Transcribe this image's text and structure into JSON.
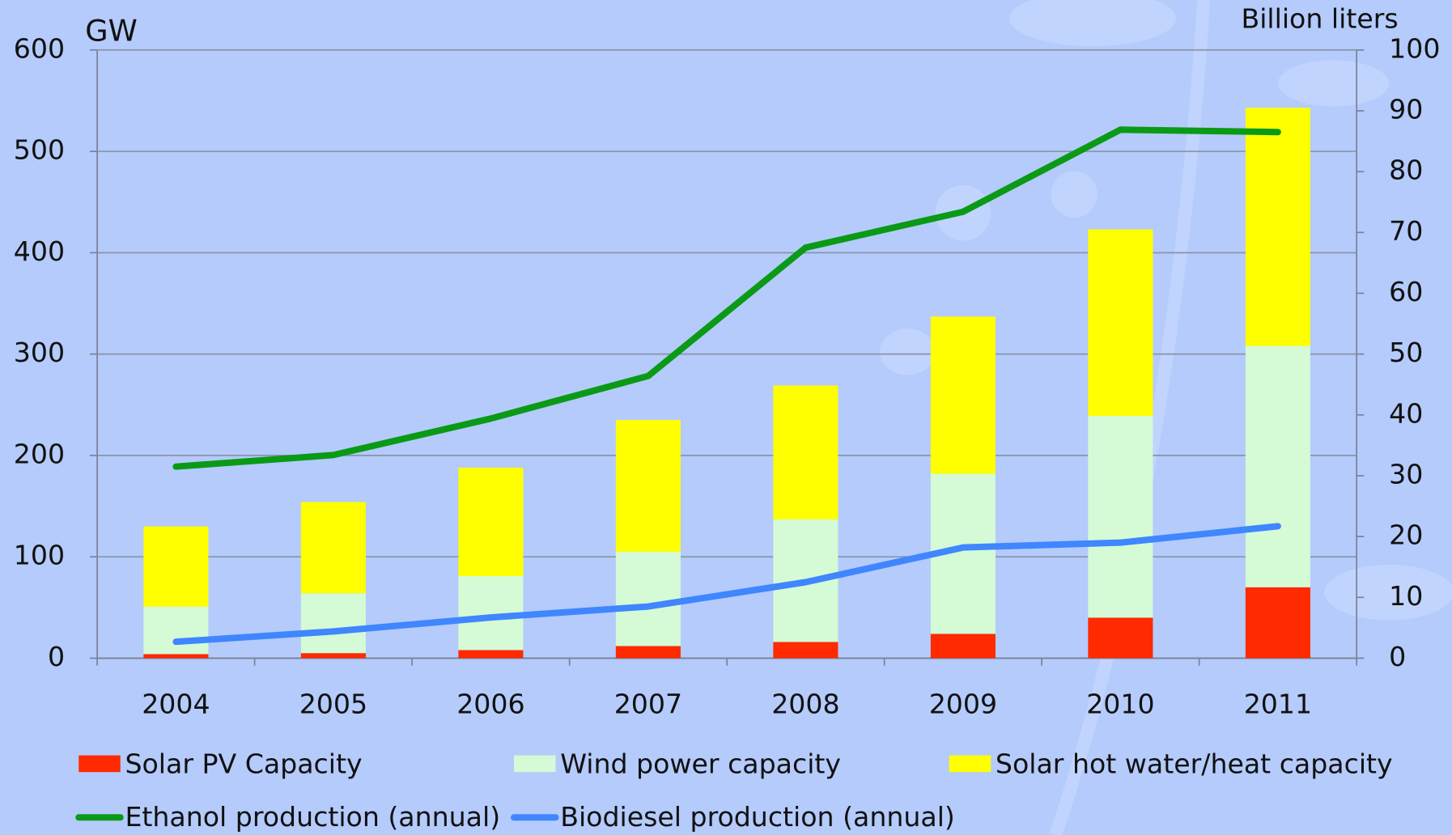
{
  "chart_data": {
    "type": "bar",
    "stacked": true,
    "y_label": "GW",
    "y2_label": "Billion liters",
    "categories": [
      "2004",
      "2005",
      "2006",
      "2007",
      "2008",
      "2009",
      "2010",
      "2011"
    ],
    "series": [
      {
        "name": "Solar PV Capacity",
        "type": "bar",
        "color": "#ff2a00",
        "values": [
          4,
          5,
          8,
          12,
          16,
          24,
          40,
          70
        ]
      },
      {
        "name": "Wind power capacity",
        "type": "bar",
        "color": "#d4fbd6",
        "values": [
          47,
          59,
          73,
          93,
          121,
          158,
          199,
          238
        ]
      },
      {
        "name": "Solar hot water/heat capacity",
        "type": "bar",
        "color": "#ffff00",
        "values": [
          79,
          90,
          107,
          130,
          132,
          155,
          184,
          235
        ]
      },
      {
        "name": "Ethanol production (annual)",
        "type": "line",
        "axis": "y2",
        "color": "#0a9a16",
        "values": [
          31.5,
          33.4,
          39.4,
          46.4,
          67.5,
          73.4,
          86.9,
          86.5
        ]
      },
      {
        "name": "Biodiesel production (annual)",
        "type": "line",
        "axis": "y2",
        "color": "#3f86ff",
        "values": [
          2.7,
          4.4,
          6.7,
          8.5,
          12.5,
          18.2,
          19,
          21.7
        ]
      }
    ],
    "ylim": [
      0,
      600
    ],
    "yticks": [
      0,
      100,
      200,
      300,
      400,
      500,
      600
    ],
    "y2lim": [
      0,
      100
    ],
    "y2ticks": [
      0,
      10,
      20,
      30,
      40,
      50,
      60,
      70,
      80,
      90,
      100
    ],
    "grid": true
  }
}
